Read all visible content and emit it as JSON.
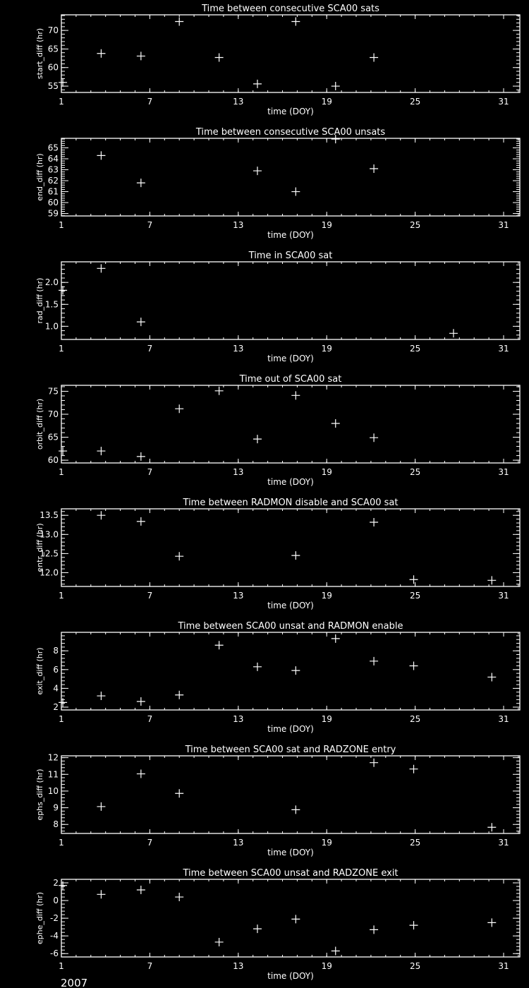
{
  "footer_year": "2007",
  "colors": {
    "background": "#000000",
    "foreground": "#ffffff"
  },
  "chart_data": [
    {
      "type": "scatter",
      "title": "Time between consecutive SCA00 sats",
      "xlabel": "time (DOY)",
      "ylabel": "start_diff (hr)",
      "xlim": [
        1,
        32.1
      ],
      "xticks": [
        1,
        7,
        13,
        19,
        25,
        31
      ],
      "ylim": [
        53.3,
        74.2
      ],
      "yticks": [
        55,
        60,
        65,
        70
      ],
      "marker": "plus",
      "grid": false,
      "x": [
        1.1,
        3.7,
        6.4,
        9.0,
        11.7,
        14.3,
        16.9,
        19.6,
        22.2
      ],
      "y": [
        56.0,
        63.8,
        63.1,
        72.4,
        62.7,
        55.6,
        72.4,
        55.0,
        62.7
      ]
    },
    {
      "type": "scatter",
      "title": "Time between consecutive SCA00 unsats",
      "xlabel": "time (DOY)",
      "ylabel": "end_diff (hr)",
      "xlim": [
        1,
        32.1
      ],
      "xticks": [
        1,
        7,
        13,
        19,
        25,
        31
      ],
      "ylim": [
        58.78,
        65.87
      ],
      "yticks": [
        59,
        60,
        61,
        62,
        63,
        64,
        65
      ],
      "marker": "plus",
      "grid": false,
      "x": [
        3.7,
        6.4,
        14.3,
        16.9,
        19.6,
        22.2
      ],
      "y": [
        64.3,
        61.8,
        62.9,
        61.0,
        65.8,
        63.1
      ]
    },
    {
      "type": "scatter",
      "title": "Time in SCA00 sat",
      "xlabel": "time (DOY)",
      "ylabel": "rad_diff (hr)",
      "xlim": [
        1,
        32.1
      ],
      "xticks": [
        1,
        7,
        13,
        19,
        25,
        31
      ],
      "ylim": [
        0.7,
        2.47
      ],
      "yticks": [
        1.0,
        1.5,
        2.0
      ],
      "ytickfmt": 1,
      "marker": "plus",
      "grid": false,
      "x": [
        1.1,
        3.7,
        6.4,
        27.6
      ],
      "y": [
        1.82,
        2.32,
        1.1,
        0.84
      ]
    },
    {
      "type": "scatter",
      "title": "Time out of SCA00 sat",
      "xlabel": "time (DOY)",
      "ylabel": "orbit_diff (hr)",
      "xlim": [
        1,
        32.1
      ],
      "xticks": [
        1,
        7,
        13,
        19,
        25,
        31
      ],
      "ylim": [
        59.4,
        76.3
      ],
      "yticks": [
        60,
        65,
        70,
        75
      ],
      "marker": "plus",
      "grid": false,
      "x": [
        1.1,
        3.7,
        6.4,
        9.0,
        11.7,
        14.3,
        16.9,
        19.6,
        22.2
      ],
      "y": [
        62.0,
        62.0,
        60.8,
        71.2,
        75.1,
        64.6,
        74.1,
        68.0,
        64.9
      ]
    },
    {
      "type": "scatter",
      "title": "Time between RADMON disable and SCA00 sat",
      "xlabel": "time (DOY)",
      "ylabel": "entr_diff (hr)",
      "xlim": [
        1,
        32.1
      ],
      "xticks": [
        1,
        7,
        13,
        19,
        25,
        31
      ],
      "ylim": [
        11.64,
        13.67
      ],
      "yticks": [
        12.0,
        12.5,
        13.0,
        13.5
      ],
      "ytickfmt": 1,
      "marker": "plus",
      "grid": false,
      "x": [
        3.7,
        6.4,
        9.0,
        16.9,
        22.2,
        24.9,
        30.2
      ],
      "y": [
        13.5,
        13.34,
        12.43,
        12.45,
        13.32,
        11.82,
        11.8
      ]
    },
    {
      "type": "scatter",
      "title": "Time between SCA00 unsat and RADMON enable",
      "xlabel": "time (DOY)",
      "ylabel": "exit_diff (hr)",
      "xlim": [
        1,
        32.1
      ],
      "xticks": [
        1,
        7,
        13,
        19,
        25,
        31
      ],
      "ylim": [
        1.7,
        9.97
      ],
      "yticks": [
        2,
        4,
        6,
        8
      ],
      "marker": "plus",
      "grid": false,
      "x": [
        1.1,
        3.7,
        6.4,
        9.0,
        11.7,
        14.3,
        16.9,
        19.6,
        22.2,
        24.9,
        30.2
      ],
      "y": [
        2.5,
        3.2,
        2.6,
        3.3,
        8.6,
        6.3,
        5.9,
        9.3,
        6.9,
        6.4,
        5.2
      ]
    },
    {
      "type": "scatter",
      "title": "Time between SCA00 sat and RADZONE entry",
      "xlabel": "time (DOY)",
      "ylabel": "ephs_diff (hr)",
      "xlim": [
        1,
        32.1
      ],
      "xticks": [
        1,
        7,
        13,
        19,
        25,
        31
      ],
      "ylim": [
        7.46,
        12.11
      ],
      "yticks": [
        8,
        9,
        10,
        11,
        12
      ],
      "marker": "plus",
      "grid": false,
      "x": [
        3.7,
        6.4,
        9.0,
        16.9,
        22.2,
        24.9,
        30.2
      ],
      "y": [
        9.07,
        11.03,
        9.86,
        8.88,
        11.7,
        11.32,
        7.83
      ]
    },
    {
      "type": "scatter",
      "title": "Time between SCA00 unsat and RADZONE exit",
      "xlabel": "time (DOY)",
      "ylabel": "ephe_diff (hr)",
      "xlim": [
        1,
        32.1
      ],
      "xticks": [
        1,
        7,
        13,
        19,
        25,
        31
      ],
      "ylim": [
        -6.38,
        2.4
      ],
      "yticks": [
        -6,
        -4,
        -2,
        0,
        2
      ],
      "marker": "plus",
      "grid": false,
      "x": [
        1.1,
        3.7,
        6.4,
        9.0,
        11.7,
        14.3,
        16.9,
        19.6,
        22.2,
        24.9,
        30.2
      ],
      "y": [
        1.7,
        0.7,
        1.2,
        0.4,
        -4.7,
        -3.2,
        -2.1,
        -5.7,
        -3.3,
        -2.8,
        -2.5
      ]
    }
  ]
}
